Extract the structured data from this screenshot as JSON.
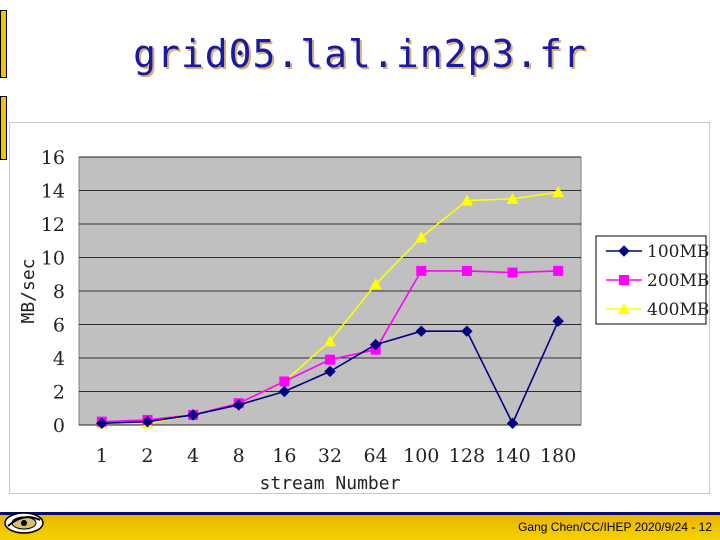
{
  "slide": {
    "title": "grid05.lal.in2p3.fr",
    "footer": "Gang Chen/CC/IHEP  2020/9/24 - 12"
  },
  "chart_data": {
    "type": "line",
    "categories": [
      "1",
      "2",
      "4",
      "8",
      "16",
      "32",
      "64",
      "100",
      "128",
      "140",
      "180"
    ],
    "xlabel": "stream Number",
    "ylabel": "MB/sec",
    "ylim": [
      0,
      16
    ],
    "yticks": [
      0,
      2,
      4,
      6,
      8,
      10,
      12,
      14,
      16
    ],
    "grid": true,
    "legend_position": "right",
    "plot_background": "#c0c0c0",
    "series": [
      {
        "name": "100MB",
        "color": "#000080",
        "marker": "diamond",
        "values": [
          0.1,
          0.2,
          0.6,
          1.2,
          2.0,
          3.2,
          4.8,
          5.6,
          5.6,
          0.1,
          6.2
        ]
      },
      {
        "name": "200MB",
        "color": "#ff00ff",
        "marker": "square",
        "values": [
          0.2,
          0.3,
          0.6,
          1.3,
          2.6,
          3.9,
          4.5,
          9.2,
          9.2,
          9.1,
          9.2
        ]
      },
      {
        "name": "400MB",
        "color": "#ffff00",
        "marker": "triangle",
        "values": [
          0.1,
          0.1,
          0.6,
          1.3,
          2.6,
          5.0,
          8.4,
          11.2,
          13.4,
          13.5,
          13.9
        ]
      }
    ]
  }
}
